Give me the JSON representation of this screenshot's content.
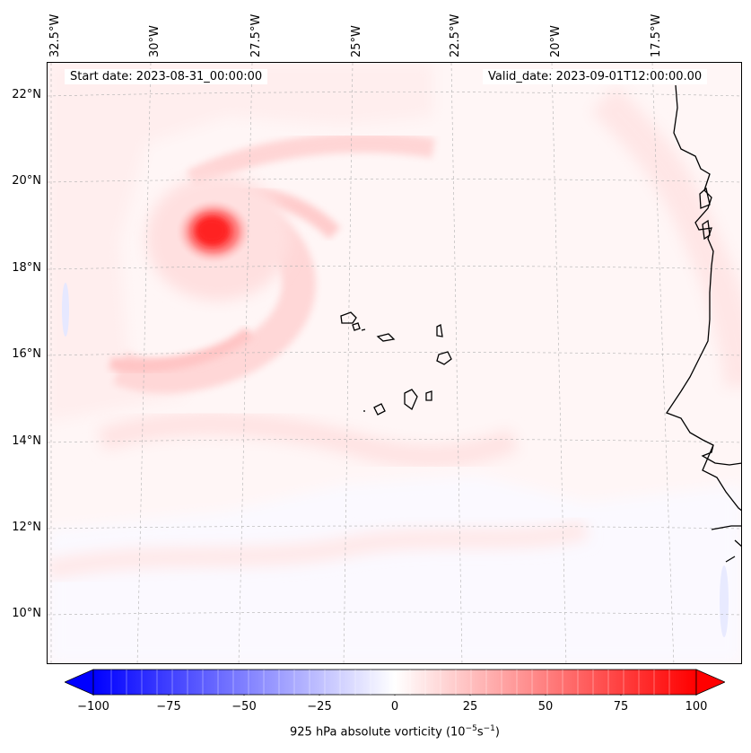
{
  "header": {
    "start_date": "Start date: 2023-08-31_00:00:00",
    "valid_date": "Valid_date: 2023-09-01T12:00:00.00"
  },
  "axes": {
    "lon_labels": [
      "32.5°W",
      "30°W",
      "27.5°W",
      "25°W",
      "22.5°W",
      "20°W",
      "17.5°W"
    ],
    "lat_labels": [
      "22°N",
      "20°N",
      "18°N",
      "16°N",
      "14°N",
      "12°N",
      "10°N"
    ]
  },
  "colorbar": {
    "ticks": [
      "−100",
      "−75",
      "−50",
      "−25",
      "0",
      "25",
      "50",
      "75",
      "100"
    ],
    "label_prefix": "925 hPa absolute vorticity (10",
    "label_exp1": "−5",
    "label_mid": "s",
    "label_exp2": "−1",
    "label_suffix": ")",
    "range": [
      -100,
      100
    ],
    "colormap": "bwr",
    "extend": "both"
  },
  "colors": {
    "coastline": "#000000",
    "gridline": "#b0b0b0",
    "positive_max": "#ff0000",
    "negative_max": "#0000ff"
  }
}
